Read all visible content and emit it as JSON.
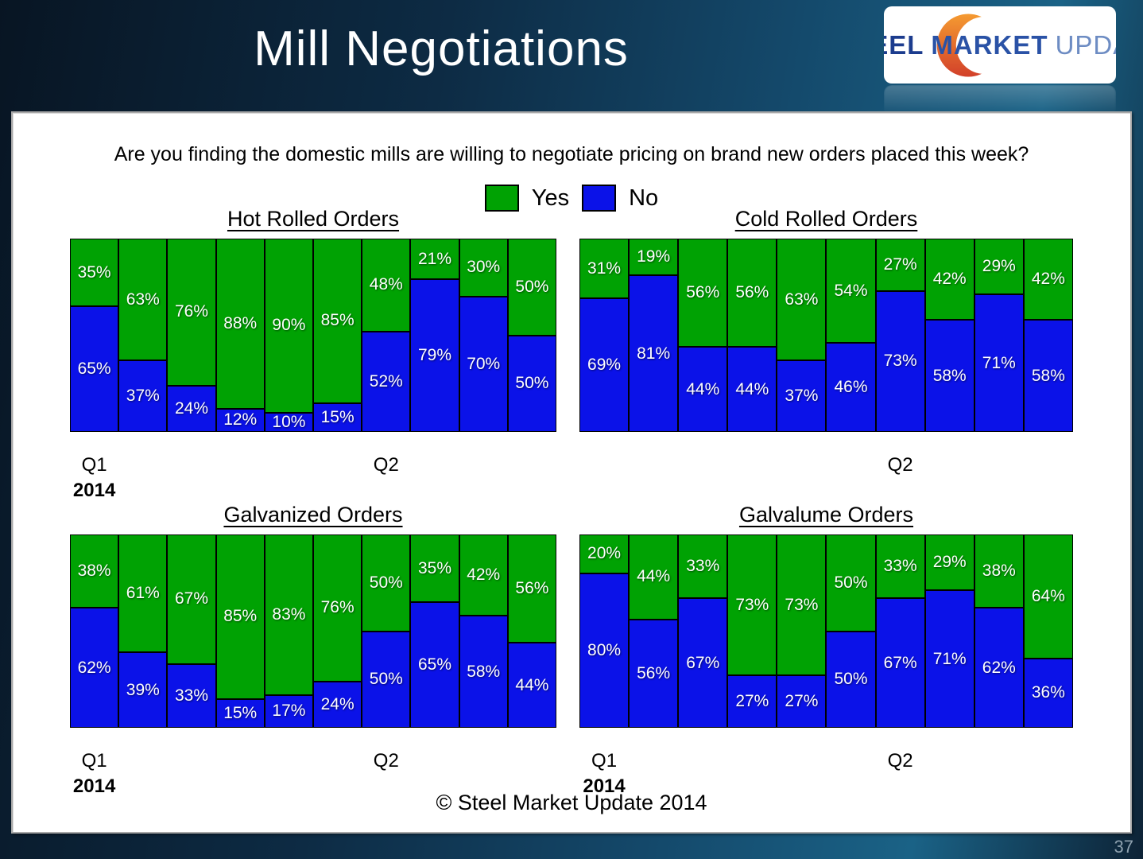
{
  "slide": {
    "title": "Mill Negotiations",
    "question": "Are you finding the domestic mills are willing to negotiate pricing on brand new orders placed this week?",
    "footer": "© Steel Market Update 2014",
    "page_number": "37"
  },
  "logo": {
    "word1": "STEEL",
    "word2": "MARKET",
    "word3": "UPDATE"
  },
  "legend": {
    "yes_label": "Yes",
    "no_label": "No"
  },
  "colors": {
    "yes": "#00a203",
    "no": "#0b12e8"
  },
  "chart_data": [
    {
      "type": "bar",
      "stacked": true,
      "title": "Hot Rolled Orders",
      "ylim": [
        0,
        100
      ],
      "unit": "%",
      "axis_labels": {
        "show_q1": true,
        "q1": "Q1",
        "year": "2014",
        "q2": "Q2"
      },
      "series": [
        {
          "name": "Yes",
          "values": [
            35,
            63,
            76,
            88,
            90,
            85,
            48,
            21,
            30,
            50
          ]
        },
        {
          "name": "No",
          "values": [
            65,
            37,
            24,
            12,
            10,
            15,
            52,
            79,
            70,
            50
          ]
        }
      ]
    },
    {
      "type": "bar",
      "stacked": true,
      "title": "Cold Rolled Orders",
      "ylim": [
        0,
        100
      ],
      "unit": "%",
      "axis_labels": {
        "show_q1": false,
        "q2": "Q2"
      },
      "series": [
        {
          "name": "Yes",
          "values": [
            31,
            19,
            56,
            56,
            63,
            54,
            27,
            42,
            29,
            42
          ]
        },
        {
          "name": "No",
          "values": [
            69,
            81,
            44,
            44,
            37,
            46,
            73,
            58,
            71,
            58
          ]
        }
      ]
    },
    {
      "type": "bar",
      "stacked": true,
      "title": "Galvanized Orders",
      "ylim": [
        0,
        100
      ],
      "unit": "%",
      "axis_labels": {
        "show_q1": true,
        "q1": "Q1",
        "year": "2014",
        "q2": "Q2"
      },
      "series": [
        {
          "name": "Yes",
          "values": [
            38,
            61,
            67,
            85,
            83,
            76,
            50,
            35,
            42,
            56
          ]
        },
        {
          "name": "No",
          "values": [
            62,
            39,
            33,
            15,
            17,
            24,
            50,
            65,
            58,
            44
          ]
        }
      ]
    },
    {
      "type": "bar",
      "stacked": true,
      "title": "Galvalume Orders",
      "ylim": [
        0,
        100
      ],
      "unit": "%",
      "axis_labels": {
        "show_q1": true,
        "q1": "Q1",
        "year": "2014",
        "q2": "Q2"
      },
      "series": [
        {
          "name": "Yes",
          "values": [
            20,
            44,
            33,
            73,
            73,
            50,
            33,
            29,
            38,
            64
          ]
        },
        {
          "name": "No",
          "values": [
            80,
            56,
            67,
            27,
            27,
            50,
            67,
            71,
            62,
            36
          ]
        }
      ]
    }
  ]
}
